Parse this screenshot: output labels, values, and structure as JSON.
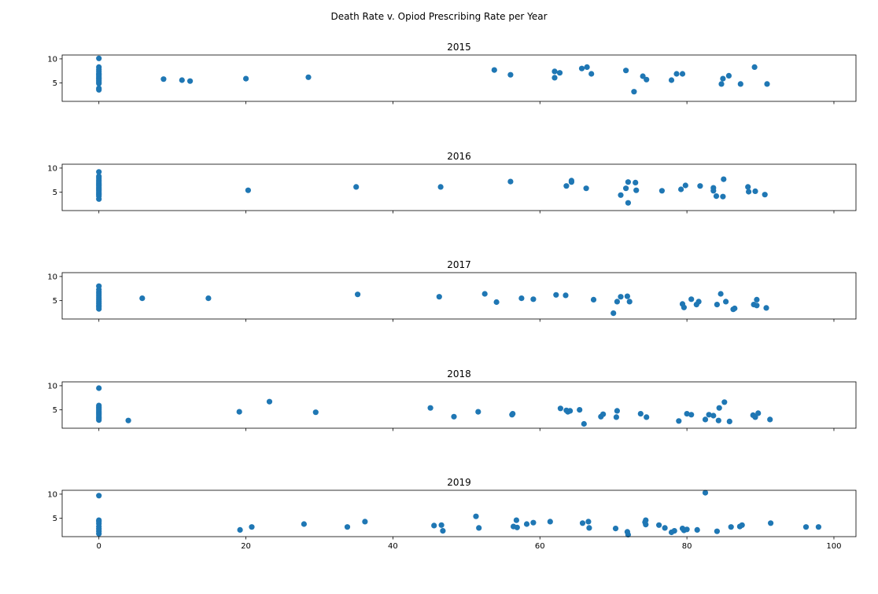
{
  "chart_data": {
    "type": "scatter",
    "title": "Death Rate v. Opiod Prescribing Rate per Year",
    "xlim": [
      -5,
      103
    ],
    "ylim": [
      1.2,
      10.8
    ],
    "xticks": [
      0,
      20,
      40,
      60,
      80,
      100
    ],
    "yticks": [
      5,
      10
    ],
    "sharex": true,
    "color": "#1f77b4",
    "panels": [
      {
        "title": "2015",
        "points": [
          [
            0,
            10.1
          ],
          [
            0,
            8.3
          ],
          [
            0,
            7.8
          ],
          [
            0,
            7.4
          ],
          [
            0,
            7.0
          ],
          [
            0,
            6.7
          ],
          [
            0,
            6.4
          ],
          [
            0,
            6.1
          ],
          [
            0,
            5.8
          ],
          [
            0,
            5.5
          ],
          [
            0,
            5.2
          ],
          [
            0,
            4.9
          ],
          [
            0,
            3.9
          ],
          [
            0,
            3.6
          ],
          [
            8.8,
            5.8
          ],
          [
            11.3,
            5.6
          ],
          [
            12.4,
            5.4
          ],
          [
            20,
            5.9
          ],
          [
            28.5,
            6.2
          ],
          [
            53.8,
            7.7
          ],
          [
            56.0,
            6.7
          ],
          [
            62.0,
            7.4
          ],
          [
            62.0,
            6.1
          ],
          [
            62.7,
            7.1
          ],
          [
            65.7,
            8.0
          ],
          [
            66.4,
            8.3
          ],
          [
            67.0,
            6.9
          ],
          [
            71.7,
            7.6
          ],
          [
            72.8,
            3.2
          ],
          [
            74.0,
            6.4
          ],
          [
            74.5,
            5.7
          ],
          [
            77.9,
            5.6
          ],
          [
            78.6,
            6.9
          ],
          [
            79.4,
            6.9
          ],
          [
            84.7,
            4.8
          ],
          [
            84.9,
            5.9
          ],
          [
            85.7,
            6.5
          ],
          [
            87.3,
            4.8
          ],
          [
            89.2,
            8.3
          ],
          [
            90.9,
            4.8
          ]
        ]
      },
      {
        "title": "2016",
        "points": [
          [
            0,
            9.2
          ],
          [
            0,
            8.3
          ],
          [
            0,
            7.9
          ],
          [
            0,
            7.5
          ],
          [
            0,
            7.2
          ],
          [
            0,
            6.9
          ],
          [
            0,
            6.6
          ],
          [
            0,
            6.3
          ],
          [
            0,
            6.0
          ],
          [
            0,
            5.7
          ],
          [
            0,
            5.4
          ],
          [
            0,
            5.1
          ],
          [
            0,
            4.8
          ],
          [
            0,
            4.5
          ],
          [
            0,
            4.2
          ],
          [
            0,
            3.6
          ],
          [
            20.3,
            5.4
          ],
          [
            35.0,
            6.1
          ],
          [
            46.5,
            6.1
          ],
          [
            56.0,
            7.2
          ],
          [
            63.6,
            6.3
          ],
          [
            64.3,
            7.1
          ],
          [
            64.3,
            7.4
          ],
          [
            66.3,
            5.8
          ],
          [
            71.0,
            4.4
          ],
          [
            71.7,
            5.8
          ],
          [
            72.0,
            7.1
          ],
          [
            72.0,
            2.8
          ],
          [
            73.1,
            5.4
          ],
          [
            73.0,
            7.0
          ],
          [
            76.6,
            5.3
          ],
          [
            79.2,
            5.6
          ],
          [
            79.8,
            6.4
          ],
          [
            81.8,
            6.3
          ],
          [
            83.6,
            5.9
          ],
          [
            83.6,
            5.3
          ],
          [
            84.0,
            4.2
          ],
          [
            84.9,
            4.1
          ],
          [
            85.0,
            7.7
          ],
          [
            88.3,
            6.1
          ],
          [
            88.4,
            5.1
          ],
          [
            89.3,
            5.2
          ],
          [
            90.6,
            4.5
          ]
        ]
      },
      {
        "title": "2017",
        "points": [
          [
            0,
            8.0
          ],
          [
            0,
            7.3
          ],
          [
            0,
            6.8
          ],
          [
            0,
            6.4
          ],
          [
            0,
            6.0
          ],
          [
            0,
            5.6
          ],
          [
            0,
            5.2
          ],
          [
            0,
            4.8
          ],
          [
            0,
            4.4
          ],
          [
            0,
            4.0
          ],
          [
            0,
            3.7
          ],
          [
            0,
            3.3
          ],
          [
            5.9,
            5.5
          ],
          [
            14.9,
            5.5
          ],
          [
            35.2,
            6.3
          ],
          [
            46.3,
            5.8
          ],
          [
            52.5,
            6.4
          ],
          [
            54.1,
            4.7
          ],
          [
            57.5,
            5.5
          ],
          [
            59.1,
            5.3
          ],
          [
            62.2,
            6.2
          ],
          [
            63.5,
            6.1
          ],
          [
            67.3,
            5.2
          ],
          [
            70.0,
            2.4
          ],
          [
            70.5,
            4.8
          ],
          [
            71.0,
            5.8
          ],
          [
            71.9,
            5.9
          ],
          [
            72.2,
            4.8
          ],
          [
            79.4,
            4.3
          ],
          [
            79.6,
            3.6
          ],
          [
            80.6,
            5.3
          ],
          [
            81.3,
            4.2
          ],
          [
            81.6,
            4.8
          ],
          [
            84.1,
            4.2
          ],
          [
            84.6,
            6.4
          ],
          [
            85.3,
            4.8
          ],
          [
            86.3,
            3.2
          ],
          [
            86.5,
            3.4
          ],
          [
            89.1,
            4.2
          ],
          [
            89.5,
            4.0
          ],
          [
            89.5,
            5.2
          ],
          [
            90.8,
            3.5
          ]
        ]
      },
      {
        "title": "2018",
        "points": [
          [
            0,
            9.5
          ],
          [
            0,
            5.9
          ],
          [
            0,
            5.6
          ],
          [
            0,
            5.3
          ],
          [
            0,
            5.0
          ],
          [
            0,
            4.7
          ],
          [
            0,
            4.4
          ],
          [
            0,
            4.1
          ],
          [
            0,
            3.8
          ],
          [
            0,
            3.5
          ],
          [
            0,
            3.2
          ],
          [
            0,
            2.9
          ],
          [
            4.0,
            2.8
          ],
          [
            19.1,
            4.6
          ],
          [
            23.2,
            6.7
          ],
          [
            29.5,
            4.5
          ],
          [
            45.1,
            5.4
          ],
          [
            48.3,
            3.6
          ],
          [
            51.6,
            4.6
          ],
          [
            56.2,
            4.0
          ],
          [
            56.3,
            4.2
          ],
          [
            62.8,
            5.3
          ],
          [
            63.6,
            4.9
          ],
          [
            63.8,
            4.6
          ],
          [
            64.1,
            4.8
          ],
          [
            65.4,
            5.0
          ],
          [
            66.0,
            2.1
          ],
          [
            68.3,
            3.6
          ],
          [
            68.6,
            4.1
          ],
          [
            70.5,
            4.8
          ],
          [
            70.4,
            3.5
          ],
          [
            73.7,
            4.2
          ],
          [
            74.5,
            3.5
          ],
          [
            78.9,
            2.7
          ],
          [
            80.0,
            4.2
          ],
          [
            80.6,
            4.0
          ],
          [
            82.5,
            3.0
          ],
          [
            83.0,
            4.0
          ],
          [
            83.6,
            3.8
          ],
          [
            84.3,
            2.8
          ],
          [
            84.4,
            5.4
          ],
          [
            85.1,
            6.6
          ],
          [
            85.8,
            2.6
          ],
          [
            89.0,
            3.9
          ],
          [
            89.3,
            3.5
          ],
          [
            89.7,
            4.3
          ],
          [
            91.3,
            3.0
          ]
        ]
      },
      {
        "title": "2019",
        "points": [
          [
            0,
            9.7
          ],
          [
            0,
            4.6
          ],
          [
            0,
            4.3
          ],
          [
            0,
            3.9
          ],
          [
            0,
            3.3
          ],
          [
            0,
            2.8
          ],
          [
            0,
            2.3
          ],
          [
            0,
            1.8
          ],
          [
            19.2,
            2.6
          ],
          [
            20.8,
            3.2
          ],
          [
            27.9,
            3.8
          ],
          [
            33.8,
            3.2
          ],
          [
            36.2,
            4.3
          ],
          [
            45.6,
            3.5
          ],
          [
            46.6,
            3.6
          ],
          [
            46.8,
            2.4
          ],
          [
            51.3,
            5.4
          ],
          [
            51.7,
            3.0
          ],
          [
            56.4,
            3.3
          ],
          [
            56.8,
            4.6
          ],
          [
            56.9,
            3.1
          ],
          [
            58.2,
            3.8
          ],
          [
            59.1,
            4.1
          ],
          [
            61.4,
            4.3
          ],
          [
            65.8,
            4.0
          ],
          [
            66.6,
            4.3
          ],
          [
            66.7,
            3.0
          ],
          [
            70.3,
            2.9
          ],
          [
            71.9,
            2.2
          ],
          [
            72.0,
            1.6
          ],
          [
            74.3,
            4.2
          ],
          [
            74.4,
            4.6
          ],
          [
            74.4,
            3.7
          ],
          [
            76.2,
            3.6
          ],
          [
            77.0,
            3.0
          ],
          [
            77.9,
            2.1
          ],
          [
            78.3,
            2.4
          ],
          [
            79.4,
            2.9
          ],
          [
            79.6,
            2.5
          ],
          [
            80.0,
            2.7
          ],
          [
            81.4,
            2.6
          ],
          [
            82.5,
            10.3
          ],
          [
            84.1,
            2.3
          ],
          [
            86.0,
            3.2
          ],
          [
            87.2,
            3.3
          ],
          [
            87.5,
            3.6
          ],
          [
            91.4,
            4.0
          ],
          [
            96.2,
            3.2
          ],
          [
            97.9,
            3.2
          ]
        ]
      }
    ]
  }
}
